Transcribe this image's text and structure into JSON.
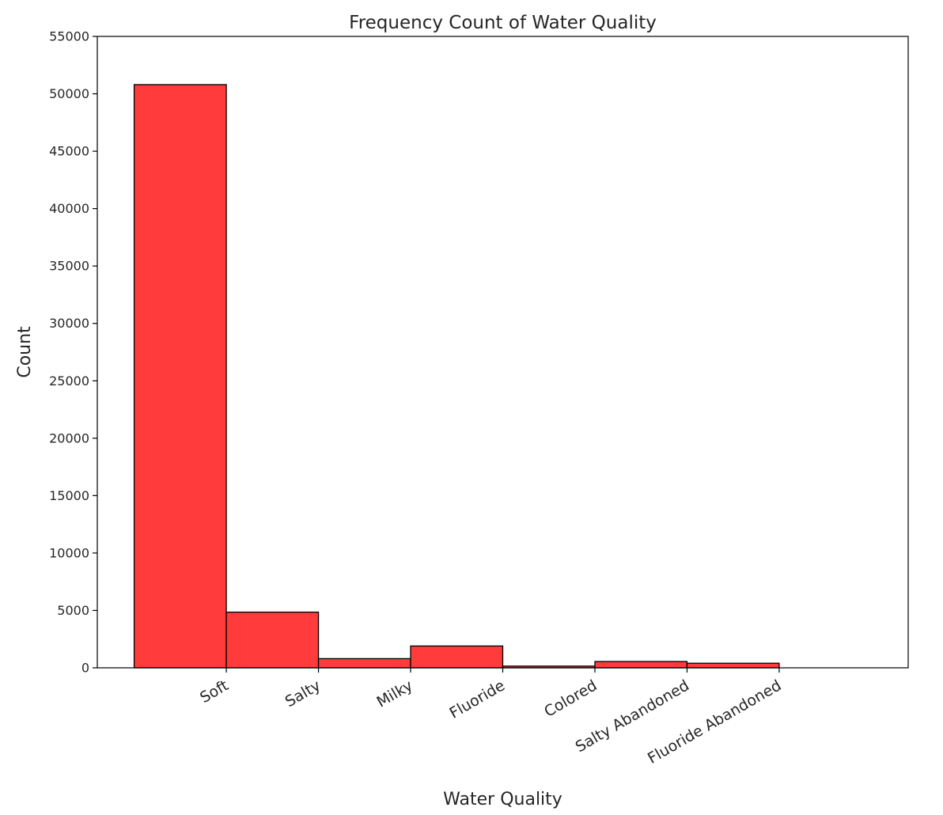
{
  "chart_data": {
    "type": "bar",
    "title": "Frequency Count of Water Quality",
    "xlabel": "Water Quality",
    "ylabel": "Count",
    "categories": [
      "Soft",
      "Salty",
      "Milky",
      "Fluoride",
      "Colored",
      "Salty Abandoned",
      "Fluoride Abandoned"
    ],
    "values": [
      50800,
      4850,
      800,
      1900,
      150,
      550,
      400
    ],
    "ylim": [
      0,
      55000
    ],
    "yticks": [
      0,
      5000,
      10000,
      15000,
      20000,
      25000,
      30000,
      35000,
      40000,
      45000,
      50000,
      55000
    ],
    "grid": false,
    "legend": "none",
    "bar_color": "#ff3b3b",
    "bar_edge_color": "#000000"
  }
}
